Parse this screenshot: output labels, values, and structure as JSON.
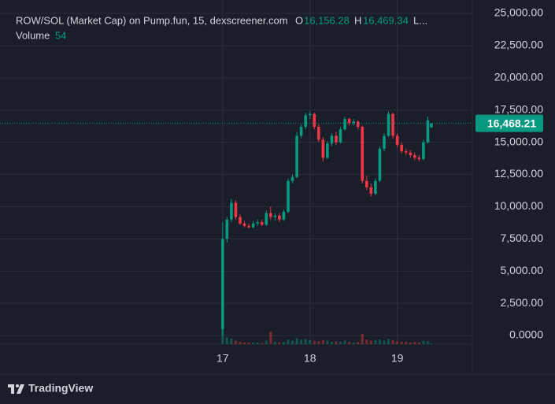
{
  "chart_data": {
    "type": "candlestick",
    "header": {
      "symbol": "ROW/SOL (Market Cap) on Pump.fun, 15, dexscreener.com",
      "open_label": "O",
      "open_value": "16,156.28",
      "high_label": "H",
      "high_value": "16,469.34",
      "low_label": "L...",
      "volume_label": "Volume",
      "volume_value": "54"
    },
    "x": [
      17.0,
      17.05,
      17.1,
      17.15,
      17.2,
      17.25,
      17.3,
      17.35,
      17.4,
      17.45,
      17.5,
      17.55,
      17.6,
      17.65,
      17.7,
      17.75,
      17.8,
      17.85,
      17.9,
      17.95,
      18.0,
      18.05,
      18.1,
      18.15,
      18.2,
      18.25,
      18.3,
      18.35,
      18.4,
      18.45,
      18.5,
      18.55,
      18.6,
      18.65,
      18.7,
      18.75,
      18.8,
      18.85,
      18.9,
      18.95,
      19.0,
      19.05,
      19.1,
      19.15,
      19.2,
      19.25,
      19.3,
      19.35,
      19.39
    ],
    "open": [
      500,
      7500,
      9000,
      10300,
      9200,
      8700,
      8500,
      8400,
      8700,
      8800,
      8600,
      9500,
      9200,
      9300,
      9000,
      9600,
      12000,
      12300,
      15500,
      16200,
      17100,
      17200,
      16200,
      15200,
      13800,
      14900,
      15500,
      15000,
      16000,
      16800,
      16500,
      16600,
      16200,
      12000,
      11500,
      11000,
      12000,
      14500,
      15500,
      17200,
      15500,
      14800,
      14300,
      14200,
      14000,
      13800,
      13700,
      15000,
      16156.28
    ],
    "high": [
      8800,
      9200,
      10600,
      10500,
      9400,
      8900,
      8700,
      8900,
      9000,
      9000,
      9700,
      10000,
      9500,
      9500,
      9800,
      12200,
      12500,
      15800,
      16400,
      17300,
      17400,
      17300,
      16400,
      15400,
      15100,
      15700,
      15800,
      16200,
      17000,
      16900,
      16800,
      16700,
      16300,
      12400,
      11800,
      12200,
      14700,
      15700,
      17400,
      17300,
      15700,
      15000,
      14500,
      14400,
      14200,
      14000,
      15200,
      17000,
      16469.34
    ],
    "low": [
      0,
      7200,
      8800,
      9000,
      8600,
      8400,
      8300,
      8300,
      8500,
      8500,
      8500,
      9000,
      8900,
      8800,
      8900,
      9500,
      11800,
      12200,
      15300,
      16000,
      16800,
      16000,
      15000,
      13500,
      13700,
      14700,
      14800,
      14900,
      15900,
      16300,
      16300,
      16000,
      11800,
      11300,
      10800,
      10900,
      11900,
      14300,
      15400,
      15300,
      14600,
      14100,
      14000,
      13800,
      13600,
      13500,
      13600,
      14900,
      16100
    ],
    "close": [
      7500,
      9000,
      10300,
      9200,
      8700,
      8500,
      8400,
      8700,
      8800,
      8600,
      9500,
      9200,
      9300,
      9000,
      9600,
      12000,
      12300,
      15500,
      16200,
      17100,
      17200,
      16200,
      15200,
      13800,
      14900,
      15500,
      15000,
      16000,
      16800,
      16500,
      16600,
      16200,
      12000,
      11500,
      11000,
      12000,
      14500,
      15500,
      17200,
      15500,
      14800,
      14300,
      14200,
      14000,
      13800,
      13700,
      15000,
      16700,
      16468.21
    ],
    "volume": [
      1500,
      600,
      500,
      300,
      200,
      150,
      150,
      120,
      150,
      100,
      300,
      1100,
      200,
      150,
      200,
      400,
      300,
      500,
      400,
      450,
      350,
      300,
      250,
      350,
      300,
      200,
      250,
      200,
      300,
      200,
      150,
      200,
      900,
      400,
      300,
      350,
      400,
      300,
      450,
      350,
      250,
      200,
      200,
      150,
      200,
      150,
      300,
      250,
      54
    ],
    "up_color": "#089981",
    "down_color": "#f23645",
    "last_price": {
      "value": 16468.21,
      "label": "16,468.21"
    },
    "xlim": [
      14.45,
      19.86
    ],
    "xticks": [
      17,
      18,
      19
    ],
    "ylim": [
      -670,
      26040
    ],
    "yticks": [
      {
        "value": 0,
        "label": "0.0000"
      },
      {
        "value": 2500,
        "label": "2,500.00"
      },
      {
        "value": 5000,
        "label": "5,000.00"
      },
      {
        "value": 7500,
        "label": "7,500.00"
      },
      {
        "value": 10000,
        "label": "10,000.00"
      },
      {
        "value": 12500,
        "label": "12,500.00"
      },
      {
        "value": 15000,
        "label": "15,000.00"
      },
      {
        "value": 17500,
        "label": "17,500.00"
      },
      {
        "value": 20000,
        "label": "20,000.00"
      },
      {
        "value": 22500,
        "label": "22,500.00"
      },
      {
        "value": 25000,
        "label": "25,000.00"
      }
    ],
    "grid": true,
    "brand": "TradingView"
  }
}
